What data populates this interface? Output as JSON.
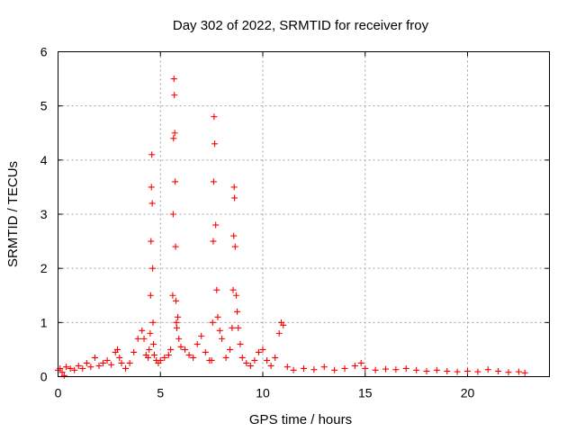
{
  "chart_data": {
    "type": "scatter",
    "title": "Day 302 of 2022, SRMTID for receiver froy",
    "xlabel": "GPS time / hours",
    "ylabel": "SRMTID / TECUs",
    "xlim": [
      0,
      24
    ],
    "ylim": [
      0,
      6
    ],
    "xticks": [
      0,
      5,
      10,
      15,
      20
    ],
    "yticks": [
      0,
      1,
      2,
      3,
      4,
      5,
      6
    ],
    "grid": true,
    "marker": "+",
    "color": "#ff0000",
    "series": [
      {
        "name": "SRMTID",
        "x": [
          0.0,
          0.1,
          0.2,
          0.3,
          0.4,
          0.6,
          0.8,
          1.0,
          1.2,
          1.4,
          1.6,
          1.8,
          2.0,
          2.2,
          2.4,
          2.6,
          2.8,
          2.9,
          3.0,
          3.1,
          3.3,
          3.5,
          3.7,
          3.9,
          4.1,
          4.2,
          4.3,
          4.4,
          4.45,
          4.5,
          4.52,
          4.54,
          4.56,
          4.58,
          4.6,
          4.62,
          4.64,
          4.66,
          4.7,
          4.8,
          4.9,
          5.0,
          5.2,
          5.4,
          5.5,
          5.6,
          5.62,
          5.64,
          5.66,
          5.68,
          5.7,
          5.72,
          5.74,
          5.76,
          5.78,
          5.8,
          5.85,
          5.9,
          6.0,
          6.2,
          6.4,
          6.6,
          6.8,
          7.0,
          7.2,
          7.4,
          7.5,
          7.55,
          7.58,
          7.6,
          7.62,
          7.65,
          7.7,
          7.75,
          7.8,
          7.9,
          8.0,
          8.2,
          8.4,
          8.5,
          8.55,
          8.58,
          8.6,
          8.62,
          8.65,
          8.7,
          8.75,
          8.8,
          8.9,
          9.0,
          9.2,
          9.4,
          9.6,
          9.8,
          10.0,
          10.2,
          10.4,
          10.6,
          10.8,
          10.9,
          11.0,
          11.2,
          11.5,
          12.0,
          12.5,
          13.0,
          13.5,
          14.0,
          14.5,
          14.8,
          15.0,
          15.5,
          16.0,
          16.5,
          17.0,
          17.5,
          18.0,
          18.5,
          19.0,
          19.5,
          20.0,
          20.5,
          21.0,
          21.5,
          22.0,
          22.5,
          22.8
        ],
        "y": [
          0.12,
          0.15,
          0.08,
          0.02,
          0.18,
          0.15,
          0.12,
          0.2,
          0.15,
          0.25,
          0.18,
          0.35,
          0.2,
          0.25,
          0.3,
          0.22,
          0.45,
          0.5,
          0.35,
          0.25,
          0.15,
          0.25,
          0.45,
          0.7,
          0.85,
          0.7,
          0.4,
          0.35,
          0.5,
          0.8,
          1.5,
          2.5,
          3.5,
          4.1,
          3.2,
          2.0,
          1.0,
          0.6,
          0.4,
          0.3,
          0.25,
          0.3,
          0.35,
          0.4,
          0.5,
          1.5,
          3.0,
          4.4,
          5.5,
          5.2,
          4.5,
          3.6,
          2.4,
          1.4,
          1.0,
          0.9,
          1.1,
          0.7,
          0.55,
          0.5,
          0.4,
          0.35,
          0.6,
          0.75,
          0.45,
          0.3,
          0.3,
          1.0,
          2.5,
          3.6,
          4.8,
          4.3,
          2.8,
          1.6,
          1.1,
          0.85,
          0.7,
          0.35,
          0.5,
          0.9,
          1.6,
          2.6,
          3.5,
          3.3,
          2.4,
          1.5,
          1.2,
          0.9,
          0.6,
          0.35,
          0.25,
          0.2,
          0.3,
          0.45,
          0.5,
          0.3,
          0.2,
          0.35,
          0.8,
          1.0,
          0.95,
          0.18,
          0.12,
          0.15,
          0.13,
          0.18,
          0.12,
          0.15,
          0.2,
          0.25,
          0.15,
          0.12,
          0.14,
          0.13,
          0.15,
          0.12,
          0.1,
          0.12,
          0.1,
          0.09,
          0.1,
          0.09,
          0.13,
          0.1,
          0.08,
          0.09,
          0.07
        ]
      }
    ]
  }
}
